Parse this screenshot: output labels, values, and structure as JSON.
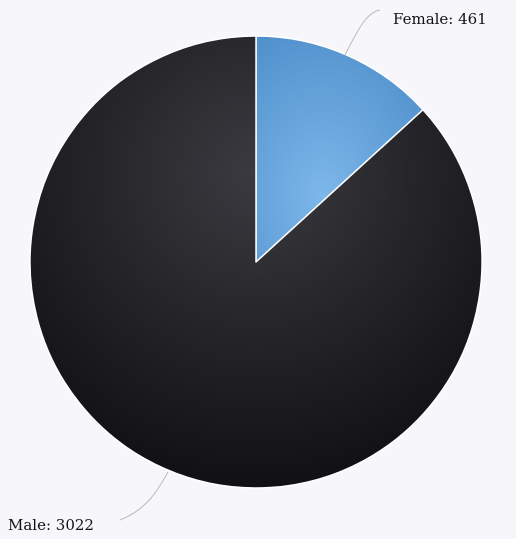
{
  "chart_data": {
    "type": "pie",
    "title": "",
    "slices": [
      {
        "label": "Female",
        "value": 461,
        "display": "Female: 461",
        "color": "#6fa8dc"
      },
      {
        "label": "Male",
        "value": 3022,
        "display": "Male: 3022",
        "color": "#222226"
      }
    ]
  },
  "colors": {
    "background": "#f7f7fb",
    "slice_border": "#ffffff",
    "connector": "#b9b9c2"
  }
}
